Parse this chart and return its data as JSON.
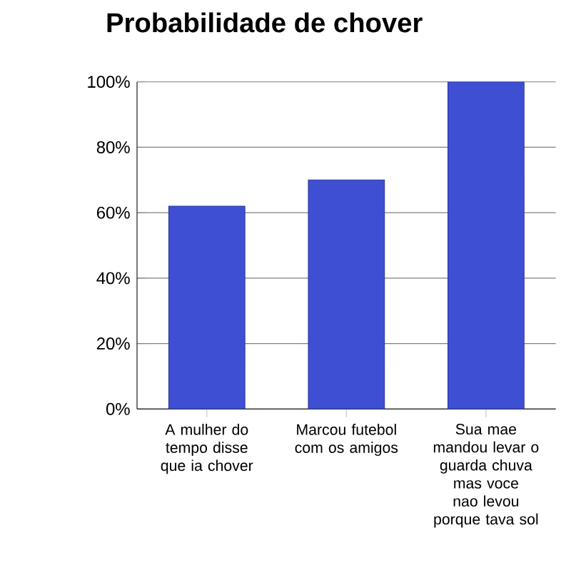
{
  "chart_data": {
    "type": "bar",
    "title": "Probabilidade de chover",
    "categories": [
      "A mulher do tempo disse que ia chover",
      "Marcou futebol com os amigos",
      "Sua mae mandou levar o guarda chuva mas voce nao levou porque tava sol"
    ],
    "values": [
      62,
      70,
      100
    ],
    "color": "#3f4fd4",
    "ylim": [
      0,
      100
    ],
    "yticks": [
      {
        "value": 0,
        "label": "0%"
      },
      {
        "value": 20,
        "label": "20%"
      },
      {
        "value": 40,
        "label": "40%"
      },
      {
        "value": 60,
        "label": "60%"
      },
      {
        "value": 80,
        "label": "80%"
      },
      {
        "value": 100,
        "label": "100%"
      }
    ],
    "grid": "y"
  }
}
